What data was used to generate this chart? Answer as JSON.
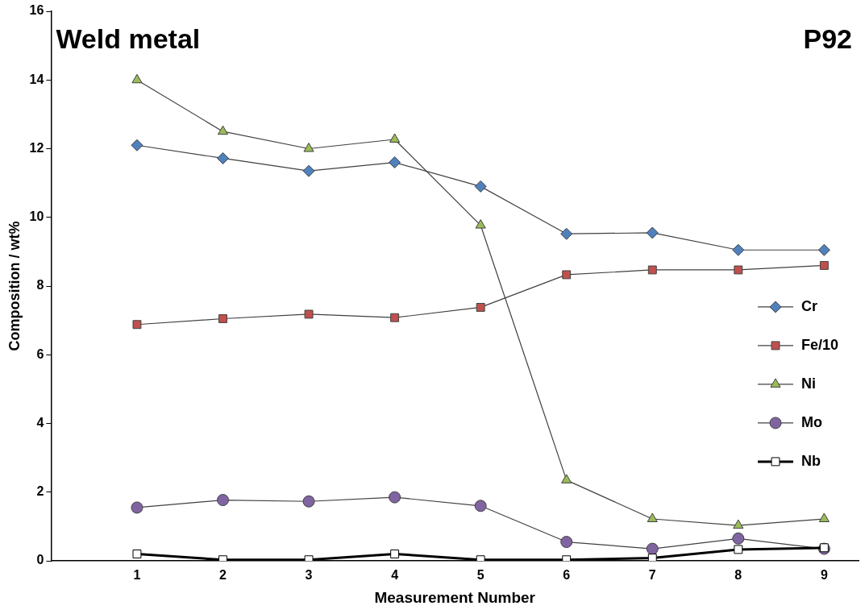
{
  "chart_data": {
    "type": "line",
    "xlabel": "Measurement Number",
    "ylabel": "Composition / wt%",
    "annotations": [
      "Weld metal",
      "P92"
    ],
    "x": [
      1,
      2,
      3,
      4,
      5,
      6,
      7,
      8,
      9
    ],
    "xlim": [
      0,
      9.4
    ],
    "xticks": [
      1,
      2,
      3,
      4,
      5,
      6,
      7,
      8,
      9
    ],
    "ylim": [
      0,
      16
    ],
    "yticks": [
      0,
      2,
      4,
      6,
      8,
      10,
      12,
      14,
      16
    ],
    "grid": false,
    "legend": "right",
    "series": [
      {
        "name": "Cr",
        "color": "#4f81bd",
        "marker": "diamond",
        "values": [
          12.1,
          11.72,
          11.35,
          11.6,
          10.9,
          9.52,
          9.55,
          9.05,
          9.05
        ]
      },
      {
        "name": "Fe/10",
        "color": "#c0504d",
        "marker": "square",
        "values": [
          6.88,
          7.05,
          7.18,
          7.08,
          7.38,
          8.33,
          8.47,
          8.47,
          8.6
        ]
      },
      {
        "name": "Ni",
        "color": "#9bbb59",
        "marker": "triangle",
        "values": [
          14.0,
          12.5,
          12.0,
          12.27,
          9.77,
          2.35,
          1.22,
          1.03,
          1.22
        ]
      },
      {
        "name": "Mo",
        "color": "#8064a2",
        "marker": "circle",
        "values": [
          1.55,
          1.77,
          1.73,
          1.85,
          1.6,
          0.55,
          0.35,
          0.65,
          0.35
        ]
      },
      {
        "name": "Nb",
        "color": "#ffffff",
        "marker": "square",
        "values": [
          0.2,
          0.03,
          0.03,
          0.2,
          0.03,
          0.03,
          0.08,
          0.33,
          0.38
        ]
      }
    ]
  }
}
